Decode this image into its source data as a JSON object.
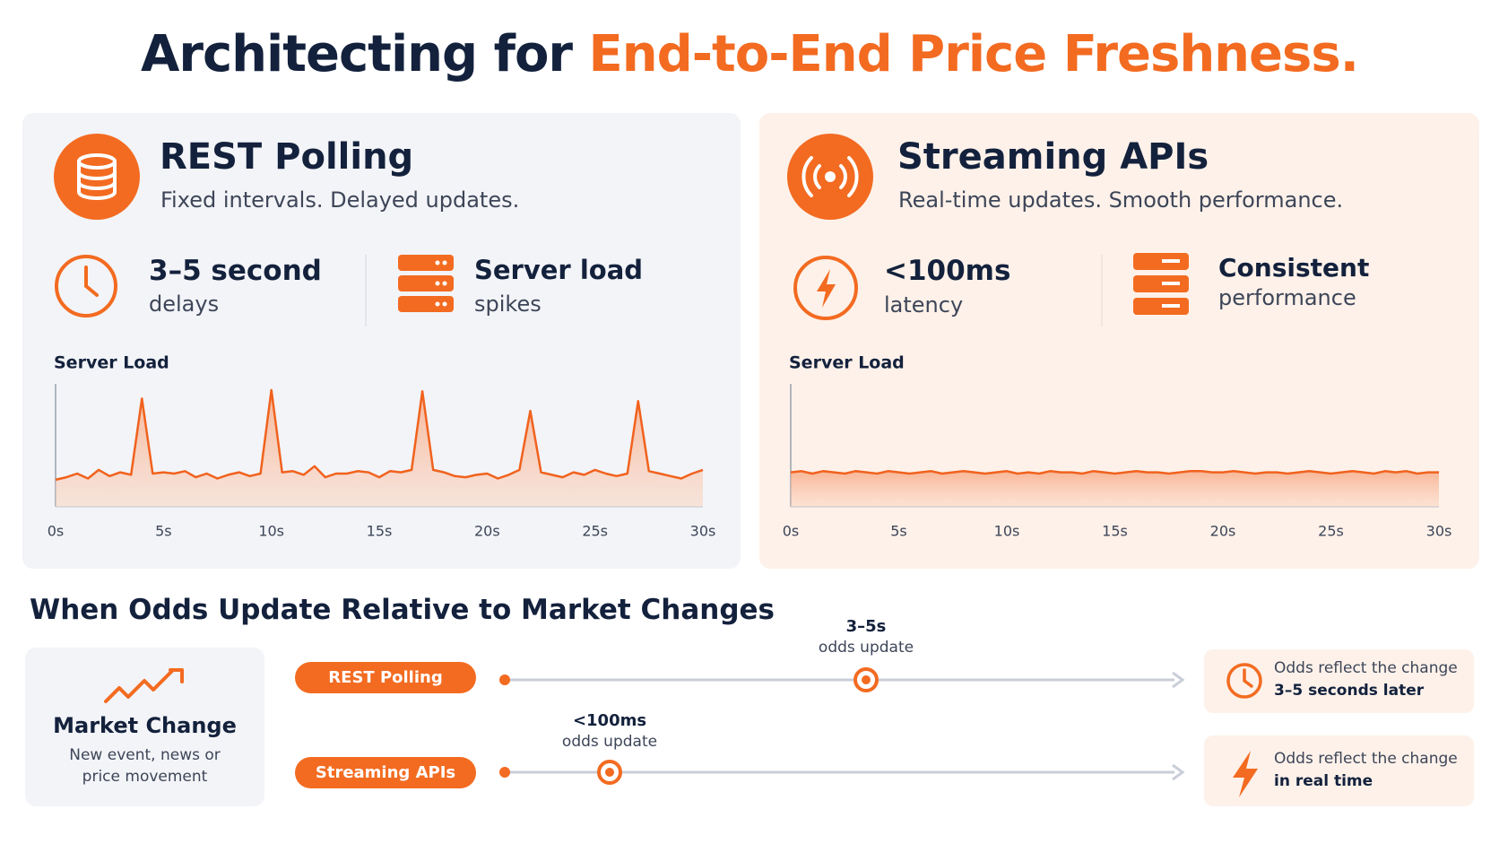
{
  "header": {
    "title_start": "Architecting for ",
    "title_highlight": "End-to-End Price Freshness."
  },
  "panels": [
    {
      "title": "REST Polling",
      "subtitle": "Fixed intervals. Delayed updates.",
      "stats": [
        {
          "main": "3–5 second",
          "sub": "delays"
        },
        {
          "main": "Server load",
          "sub": "spikes"
        }
      ]
    },
    {
      "title": "Streaming APIs",
      "subtitle": "Real-time updates. Smooth performance.",
      "stats": [
        {
          "main": "<100ms",
          "sub": "latency"
        },
        {
          "main": "Consistent",
          "sub": "performance"
        }
      ]
    }
  ],
  "chart_data": [
    {
      "type": "line",
      "title": "Server Load",
      "x": [
        0,
        0.5,
        1,
        1.5,
        2,
        2.5,
        3,
        3.5,
        4,
        4.5,
        5,
        5.5,
        6,
        6.5,
        7,
        7.5,
        8,
        8.5,
        9,
        9.5,
        10,
        10.5,
        11,
        11.5,
        12,
        12.5,
        13,
        13.5,
        14,
        14.5,
        15,
        15.5,
        16,
        16.5,
        17,
        17.5,
        18,
        18.5,
        19,
        19.5,
        20,
        20.5,
        21,
        21.5,
        22,
        22.5,
        23,
        23.5,
        24,
        24.5,
        25,
        25.5,
        26,
        26.5,
        27,
        27.5,
        28,
        28.5,
        29,
        29.5,
        30
      ],
      "series": [
        {
          "color": "#f0621d",
          "values": [
            22,
            24,
            27,
            23,
            30,
            25,
            28,
            26,
            88,
            27,
            28,
            27,
            29,
            24,
            27,
            23,
            26,
            28,
            25,
            27,
            95,
            28,
            29,
            26,
            33,
            24,
            27,
            27,
            29,
            28,
            24,
            29,
            28,
            30,
            94,
            30,
            28,
            25,
            24,
            26,
            27,
            23,
            26,
            30,
            78,
            28,
            26,
            24,
            28,
            26,
            30,
            27,
            25,
            27,
            86,
            29,
            27,
            25,
            23,
            27,
            30
          ]
        }
      ],
      "xlim": [
        0,
        30
      ],
      "ylim": [
        0,
        100
      ],
      "xticks": [
        {
          "value": 0,
          "label": "0s"
        },
        {
          "value": 5,
          "label": "5s"
        },
        {
          "value": 10,
          "label": "10s"
        },
        {
          "value": 15,
          "label": "15s"
        },
        {
          "value": 20,
          "label": "20s"
        },
        {
          "value": 25,
          "label": "25s"
        },
        {
          "value": 30,
          "label": "30s"
        }
      ]
    },
    {
      "type": "line",
      "title": "Server Load",
      "x": [
        0,
        0.5,
        1,
        1.5,
        2,
        2.5,
        3,
        3.5,
        4,
        4.5,
        5,
        5.5,
        6,
        6.5,
        7,
        7.5,
        8,
        8.5,
        9,
        9.5,
        10,
        10.5,
        11,
        11.5,
        12,
        12.5,
        13,
        13.5,
        14,
        14.5,
        15,
        15.5,
        16,
        16.5,
        17,
        17.5,
        18,
        18.5,
        19,
        19.5,
        20,
        20.5,
        21,
        21.5,
        22,
        22.5,
        23,
        23.5,
        24,
        24.5,
        25,
        25.5,
        26,
        26.5,
        27,
        27.5,
        28,
        28.5,
        29,
        29.5,
        30
      ],
      "series": [
        {
          "color": "#f0621d",
          "values": [
            28,
            29,
            27,
            29,
            28,
            27,
            29,
            28,
            27,
            29,
            28,
            27,
            28,
            29,
            27,
            28,
            29,
            28,
            27,
            28,
            29,
            27,
            28,
            27,
            29,
            28,
            28,
            27,
            29,
            28,
            27,
            28,
            29,
            28,
            28,
            27,
            28,
            29,
            29,
            28,
            28,
            29,
            28,
            27,
            28,
            28,
            27,
            28,
            29,
            28,
            27,
            28,
            29,
            28,
            27,
            29,
            28,
            29,
            27,
            28,
            28
          ]
        }
      ],
      "xlim": [
        0,
        30
      ],
      "ylim": [
        0,
        100
      ],
      "xticks": [
        {
          "value": 0,
          "label": "0s"
        },
        {
          "value": 5,
          "label": "5s"
        },
        {
          "value": 10,
          "label": "10s"
        },
        {
          "value": 15,
          "label": "15s"
        },
        {
          "value": 20,
          "label": "20s"
        },
        {
          "value": 25,
          "label": "25s"
        },
        {
          "value": 30,
          "label": "30s"
        }
      ]
    }
  ],
  "timeline": {
    "title": "When Odds Update Relative to Market Changes",
    "source": {
      "title": "Market Change",
      "text": "New event, news or price movement"
    },
    "rows": [
      {
        "name": "REST Polling",
        "marker_main": "3–5s",
        "marker_sub": "odds update",
        "result_line1": "Odds reflect the change",
        "result_line2": "3–5 seconds later"
      },
      {
        "name": "Streaming APIs",
        "marker_main": "<100ms",
        "marker_sub": "odds update",
        "result_line1": "Odds reflect the change",
        "result_line2": "in real time"
      }
    ]
  }
}
